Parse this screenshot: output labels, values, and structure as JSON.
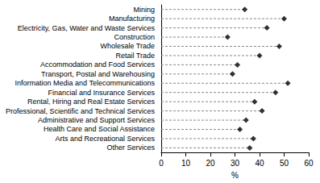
{
  "chart_data": {
    "type": "scatter",
    "orientation": "horizontal",
    "categories": [
      "Mining",
      "Manufacturing",
      "Electricity, Gas, Water and Waste Services",
      "Construction",
      "Wholesale Trade",
      "Retail Trade",
      "Accommodation and Food Services",
      "Transport, Postal and Warehousing",
      "Information Media and Telecommunications",
      "Financial and Insurance Services",
      "Rental, Hiring and Real Estate Services",
      "Professional, Scientific and Technical Services",
      "Administrative and Support Services",
      "Health Care and Social Assistance",
      "Arts and Recreational Services",
      "Other Services"
    ],
    "values": [
      34,
      50,
      43,
      27,
      48,
      40,
      31,
      29,
      51.5,
      46.5,
      38,
      41,
      34.5,
      32,
      37.5,
      36
    ],
    "color": "#000000",
    "marker": "diamond",
    "line_style": "dashed",
    "xlabel": "%",
    "xlim": [
      0,
      60
    ],
    "xticks": [
      0,
      10,
      20,
      30,
      40,
      50,
      60
    ],
    "grid": false
  }
}
